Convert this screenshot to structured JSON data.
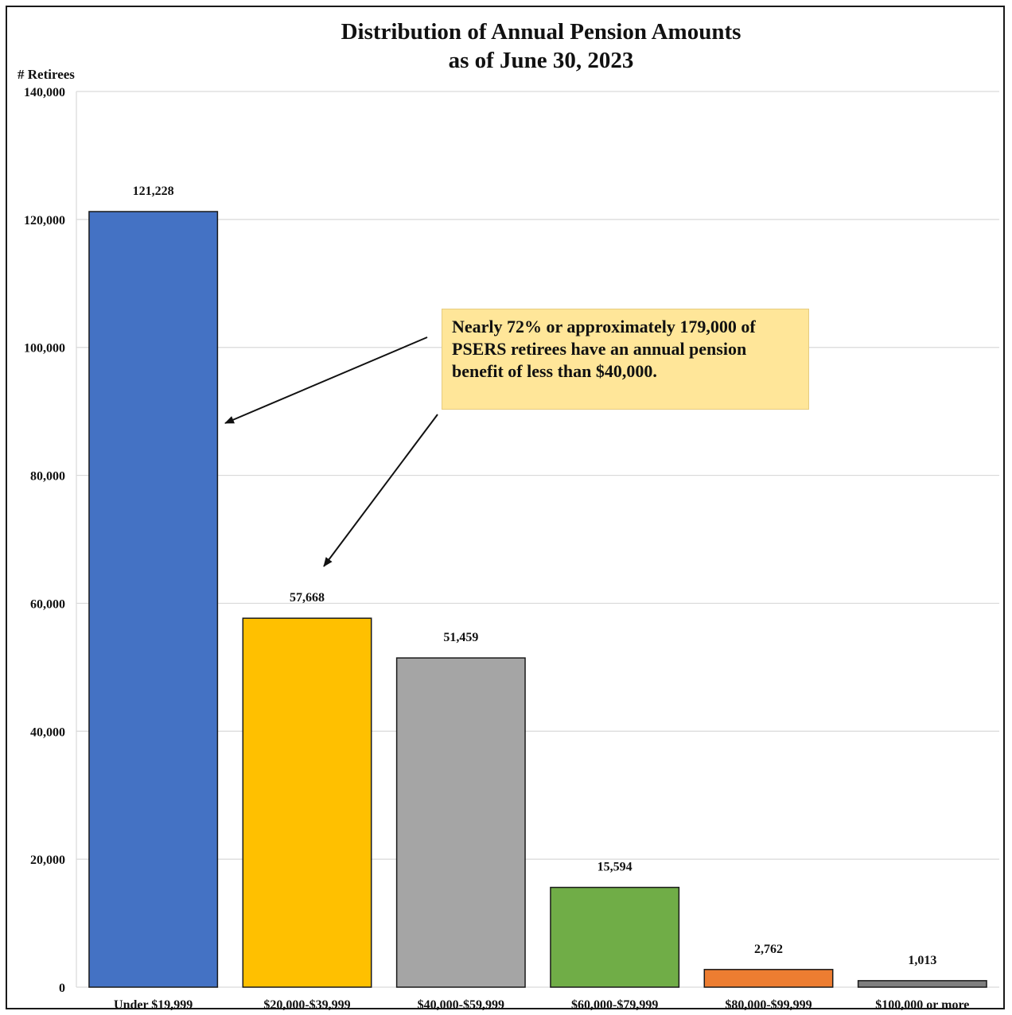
{
  "chart_data": {
    "type": "bar",
    "title_line1": "Distribution of Annual Pension Amounts",
    "title_line2": "as of June 30, 2023",
    "ylabel": "# Retirees",
    "xlabel": "",
    "ylim": [
      0,
      140000
    ],
    "yticks": [
      0,
      20000,
      40000,
      60000,
      80000,
      100000,
      120000,
      140000
    ],
    "ytick_labels": [
      "0",
      "20,000",
      "40,000",
      "60,000",
      "80,000",
      "100,000",
      "120,000",
      "140,000"
    ],
    "grid": true,
    "categories": [
      "Under $19,999",
      "$20,000-$39,999",
      "$40,000-$59,999",
      "$60,000-$79,999",
      "$80,000-$99,999",
      "$100,000 or more"
    ],
    "values": [
      121228,
      57668,
      51459,
      15594,
      2762,
      1013
    ],
    "value_labels": [
      "121,228",
      "57,668",
      "51,459",
      "15,594",
      "2,762",
      "1,013"
    ],
    "colors": [
      "#4472c4",
      "#ffc000",
      "#a5a5a5",
      "#70ad47",
      "#ed7d31",
      "#7f7f7f"
    ],
    "annotation": {
      "text_line1": "Nearly 72% or approximately 179,000 of",
      "text_line2": "PSERS retirees have an annual pension",
      "text_line3": "benefit of less than $40,000.",
      "background": "#ffe699",
      "points_to": [
        "Under $19,999",
        "$20,000-$39,999"
      ]
    }
  }
}
